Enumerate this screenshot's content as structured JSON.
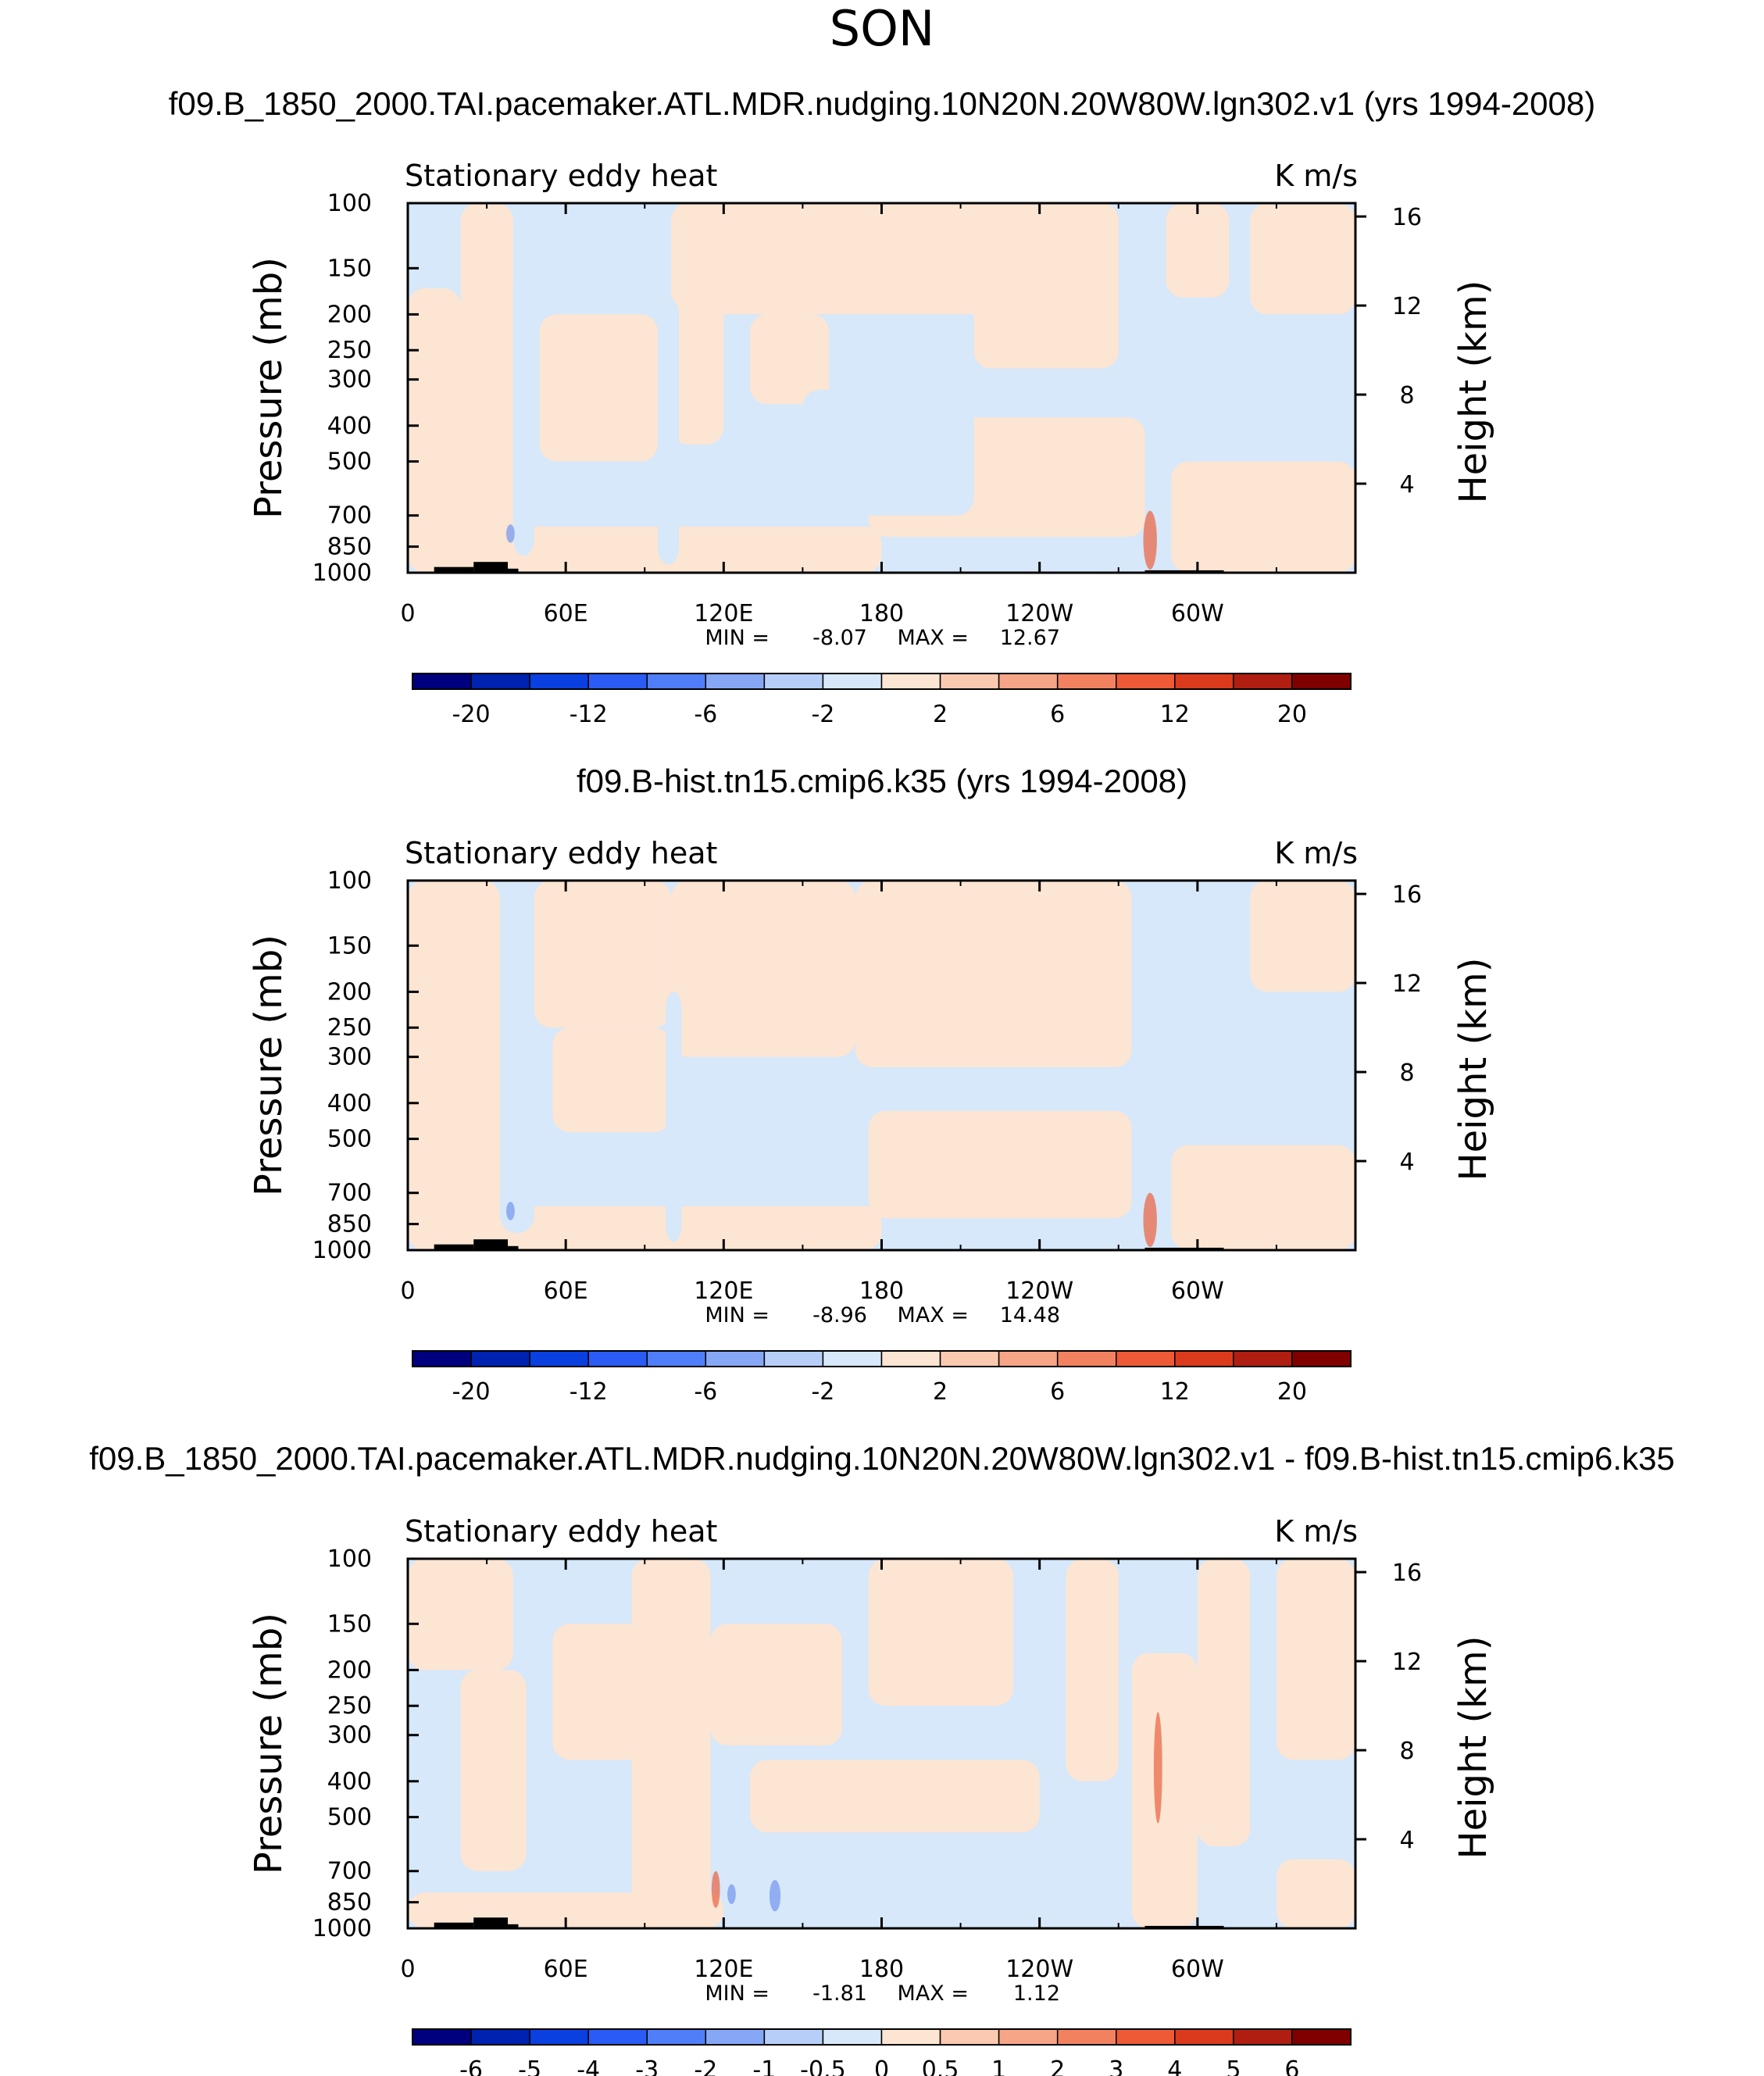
{
  "figure": {
    "season_title": "SON",
    "colors": {
      "light_blue": "#d6e8fa",
      "light_peach": "#fde5d3",
      "frame": "#000000",
      "topography": "#000000",
      "red_patch": "#e96a4a",
      "blue_patch": "#7f9ff0"
    }
  },
  "chart_data": [
    {
      "type": "heatmap",
      "title": "f09.B_1850_2000.TAI.pacemaker.ATL.MDR.nudging.10N20N.20W80W.lgn302.v1 (yrs 1994-2008)",
      "left_label": "Stationary eddy heat",
      "right_label": "K m/s",
      "ylabel": "Pressure (mb)",
      "ylabel_right": "Height (km)",
      "x_ticks": [
        "0",
        "60E",
        "120E",
        "180",
        "120W",
        "60W"
      ],
      "x_tick_lon": [
        0,
        60,
        120,
        180,
        240,
        300
      ],
      "xlim": [
        0,
        360
      ],
      "y_ticks": [
        "100",
        "150",
        "200",
        "250",
        "300",
        "400",
        "500",
        "700",
        "850",
        "1000"
      ],
      "y_tick_values": [
        100,
        150,
        200,
        250,
        300,
        400,
        500,
        700,
        850,
        1000
      ],
      "ylim": [
        1000,
        100
      ],
      "height_ticks": [
        "16",
        "12",
        "8",
        "4"
      ],
      "height_values": [
        16,
        12,
        8,
        4
      ],
      "min_label": "MIN =",
      "min_value": "-8.07",
      "max_label": "MAX =",
      "max_value": "12.67",
      "colorbar": {
        "colors": [
          "#00007f",
          "#0022b0",
          "#0a3fe0",
          "#2a5cf5",
          "#4f7ef8",
          "#86a7f6",
          "#b7cff8",
          "#d6e8fa",
          "#fde5d3",
          "#fac9b0",
          "#f6a586",
          "#f2825f",
          "#ee5a36",
          "#dc3a1c",
          "#b01e12",
          "#800000"
        ],
        "labels": [
          "-20",
          "-12",
          "-6",
          "-2",
          "2",
          "6",
          "12",
          "20"
        ],
        "label_boundaries": [
          1,
          3,
          5,
          7,
          9,
          11,
          13,
          15
        ]
      },
      "regions": [
        {
          "sign": "+",
          "lon": [
            0,
            20
          ],
          "p": [
            170,
            1000
          ]
        },
        {
          "sign": "+",
          "lon": [
            20,
            40
          ],
          "p": [
            100,
            1000
          ]
        },
        {
          "sign": "+",
          "lon": [
            50,
            95
          ],
          "p": [
            200,
            500
          ]
        },
        {
          "sign": "+",
          "lon": [
            100,
            120
          ],
          "p": [
            100,
            450
          ]
        },
        {
          "sign": "+",
          "lon": [
            100,
            240
          ],
          "p": [
            100,
            200
          ]
        },
        {
          "sign": "+",
          "lon": [
            130,
            160
          ],
          "p": [
            200,
            350
          ]
        },
        {
          "sign": "+",
          "lon": [
            175,
            280
          ],
          "p": [
            380,
            800
          ]
        },
        {
          "sign": "+",
          "lon": [
            215,
            270
          ],
          "p": [
            100,
            280
          ]
        },
        {
          "sign": "+",
          "lon": [
            288,
            312
          ],
          "p": [
            100,
            180
          ]
        },
        {
          "sign": "+",
          "lon": [
            320,
            360
          ],
          "p": [
            100,
            200
          ]
        },
        {
          "sign": "+",
          "lon": [
            290,
            360
          ],
          "p": [
            500,
            1000
          ]
        },
        {
          "sign": "+",
          "lon": [
            0,
            180
          ],
          "p": [
            750,
            1000
          ]
        },
        {
          "sign": "-",
          "lon": [
            40,
            48
          ],
          "p": [
            150,
            900
          ]
        },
        {
          "sign": "-",
          "lon": [
            95,
            103
          ],
          "p": [
            180,
            950
          ]
        },
        {
          "sign": "-",
          "lon": [
            150,
            215
          ],
          "p": [
            320,
            700
          ]
        }
      ],
      "topography": [
        {
          "lon": [
            10,
            25
          ],
          "p": [
            965,
            1000
          ]
        },
        {
          "lon": [
            25,
            38
          ],
          "p": [
            935,
            1000
          ]
        },
        {
          "lon": [
            38,
            42
          ],
          "p": [
            975,
            1000
          ]
        },
        {
          "lon": [
            280,
            310
          ],
          "p": [
            985,
            1000
          ]
        }
      ],
      "red_patches": [
        {
          "lon": [
            280,
            284
          ],
          "p": [
            680,
            980
          ]
        }
      ],
      "blue_patches": [
        {
          "lon": [
            38,
            40
          ],
          "p": [
            740,
            830
          ]
        }
      ]
    },
    {
      "type": "heatmap",
      "title": "f09.B-hist.tn15.cmip6.k35 (yrs 1994-2008)",
      "left_label": "Stationary eddy heat",
      "right_label": "K m/s",
      "ylabel": "Pressure (mb)",
      "ylabel_right": "Height (km)",
      "x_ticks": [
        "0",
        "60E",
        "120E",
        "180",
        "120W",
        "60W"
      ],
      "x_tick_lon": [
        0,
        60,
        120,
        180,
        240,
        300
      ],
      "xlim": [
        0,
        360
      ],
      "y_ticks": [
        "100",
        "150",
        "200",
        "250",
        "300",
        "400",
        "500",
        "700",
        "850",
        "1000"
      ],
      "y_tick_values": [
        100,
        150,
        200,
        250,
        300,
        400,
        500,
        700,
        850,
        1000
      ],
      "ylim": [
        1000,
        100
      ],
      "height_ticks": [
        "16",
        "12",
        "8",
        "4"
      ],
      "height_values": [
        16,
        12,
        8,
        4
      ],
      "min_label": "MIN =",
      "min_value": "-8.96",
      "max_label": "MAX =",
      "max_value": "14.48",
      "colorbar": {
        "colors": [
          "#00007f",
          "#0022b0",
          "#0a3fe0",
          "#2a5cf5",
          "#4f7ef8",
          "#86a7f6",
          "#b7cff8",
          "#d6e8fa",
          "#fde5d3",
          "#fac9b0",
          "#f6a586",
          "#f2825f",
          "#ee5a36",
          "#dc3a1c",
          "#b01e12",
          "#800000"
        ],
        "labels": [
          "-20",
          "-12",
          "-6",
          "-2",
          "2",
          "6",
          "12",
          "20"
        ],
        "label_boundaries": [
          1,
          3,
          5,
          7,
          9,
          11,
          13,
          15
        ]
      },
      "regions": [
        {
          "sign": "+",
          "lon": [
            0,
            35
          ],
          "p": [
            100,
            1000
          ]
        },
        {
          "sign": "+",
          "lon": [
            48,
            100
          ],
          "p": [
            100,
            250
          ]
        },
        {
          "sign": "+",
          "lon": [
            55,
            100
          ],
          "p": [
            250,
            480
          ]
        },
        {
          "sign": "+",
          "lon": [
            100,
            170
          ],
          "p": [
            100,
            300
          ]
        },
        {
          "sign": "+",
          "lon": [
            170,
            275
          ],
          "p": [
            100,
            320
          ]
        },
        {
          "sign": "+",
          "lon": [
            175,
            275
          ],
          "p": [
            420,
            820
          ]
        },
        {
          "sign": "+",
          "lon": [
            320,
            360
          ],
          "p": [
            100,
            200
          ]
        },
        {
          "sign": "+",
          "lon": [
            290,
            360
          ],
          "p": [
            520,
            1000
          ]
        },
        {
          "sign": "+",
          "lon": [
            0,
            180
          ],
          "p": [
            760,
            1000
          ]
        },
        {
          "sign": "-",
          "lon": [
            35,
            48
          ],
          "p": [
            120,
            900
          ]
        },
        {
          "sign": "-",
          "lon": [
            98,
            104
          ],
          "p": [
            200,
            950
          ]
        }
      ],
      "topography": [
        {
          "lon": [
            10,
            25
          ],
          "p": [
            965,
            1000
          ]
        },
        {
          "lon": [
            25,
            38
          ],
          "p": [
            935,
            1000
          ]
        },
        {
          "lon": [
            38,
            42
          ],
          "p": [
            975,
            1000
          ]
        },
        {
          "lon": [
            280,
            310
          ],
          "p": [
            985,
            1000
          ]
        }
      ],
      "red_patches": [
        {
          "lon": [
            280,
            284
          ],
          "p": [
            700,
            980
          ]
        }
      ],
      "blue_patches": [
        {
          "lon": [
            38,
            40
          ],
          "p": [
            740,
            830
          ]
        }
      ]
    },
    {
      "type": "heatmap",
      "title": "f09.B_1850_2000.TAI.pacemaker.ATL.MDR.nudging.10N20N.20W80W.lgn302.v1 - f09.B-hist.tn15.cmip6.k35",
      "left_label": "Stationary eddy heat",
      "right_label": "K m/s",
      "ylabel": "Pressure (mb)",
      "ylabel_right": "Height (km)",
      "x_ticks": [
        "0",
        "60E",
        "120E",
        "180",
        "120W",
        "60W"
      ],
      "x_tick_lon": [
        0,
        60,
        120,
        180,
        240,
        300
      ],
      "xlim": [
        0,
        360
      ],
      "y_ticks": [
        "100",
        "150",
        "200",
        "250",
        "300",
        "400",
        "500",
        "700",
        "850",
        "1000"
      ],
      "y_tick_values": [
        100,
        150,
        200,
        250,
        300,
        400,
        500,
        700,
        850,
        1000
      ],
      "ylim": [
        1000,
        100
      ],
      "height_ticks": [
        "16",
        "12",
        "8",
        "4"
      ],
      "height_values": [
        16,
        12,
        8,
        4
      ],
      "min_label": "MIN =",
      "min_value": "-1.81",
      "max_label": "MAX =",
      "max_value": "1.12",
      "colorbar": {
        "colors": [
          "#00007f",
          "#0022b0",
          "#0a3fe0",
          "#2a5cf5",
          "#4f7ef8",
          "#86a7f6",
          "#b7cff8",
          "#d6e8fa",
          "#fde5d3",
          "#fac9b0",
          "#f6a586",
          "#f2825f",
          "#ee5a36",
          "#dc3a1c",
          "#b01e12",
          "#800000"
        ],
        "labels": [
          "-6",
          "-5",
          "-4",
          "-3",
          "-2",
          "-1",
          "-0.5",
          "0",
          "0.5",
          "1",
          "2",
          "3",
          "4",
          "5",
          "6"
        ],
        "label_boundaries": [
          1,
          2,
          3,
          4,
          5,
          6,
          7,
          8,
          9,
          10,
          11,
          12,
          13,
          14,
          15
        ]
      },
      "regions": [
        {
          "sign": "+",
          "lon": [
            0,
            40
          ],
          "p": [
            100,
            200
          ]
        },
        {
          "sign": "+",
          "lon": [
            20,
            45
          ],
          "p": [
            200,
            700
          ]
        },
        {
          "sign": "+",
          "lon": [
            55,
            90
          ],
          "p": [
            150,
            350
          ]
        },
        {
          "sign": "+",
          "lon": [
            85,
            115
          ],
          "p": [
            100,
            900
          ]
        },
        {
          "sign": "+",
          "lon": [
            115,
            165
          ],
          "p": [
            150,
            320
          ]
        },
        {
          "sign": "+",
          "lon": [
            130,
            240
          ],
          "p": [
            350,
            550
          ]
        },
        {
          "sign": "+",
          "lon": [
            175,
            230
          ],
          "p": [
            100,
            250
          ]
        },
        {
          "sign": "+",
          "lon": [
            250,
            270
          ],
          "p": [
            100,
            400
          ]
        },
        {
          "sign": "+",
          "lon": [
            275,
            300
          ],
          "p": [
            180,
            1000
          ]
        },
        {
          "sign": "+",
          "lon": [
            300,
            320
          ],
          "p": [
            100,
            600
          ]
        },
        {
          "sign": "+",
          "lon": [
            330,
            360
          ],
          "p": [
            100,
            350
          ]
        },
        {
          "sign": "+",
          "lon": [
            330,
            360
          ],
          "p": [
            650,
            1000
          ]
        },
        {
          "sign": "+",
          "lon": [
            0,
            120
          ],
          "p": [
            800,
            1000
          ]
        }
      ],
      "topography": [
        {
          "lon": [
            10,
            25
          ],
          "p": [
            965,
            1000
          ]
        },
        {
          "lon": [
            25,
            38
          ],
          "p": [
            935,
            1000
          ]
        },
        {
          "lon": [
            38,
            42
          ],
          "p": [
            975,
            1000
          ]
        },
        {
          "lon": [
            280,
            310
          ],
          "p": [
            985,
            1000
          ]
        }
      ],
      "red_patches": [
        {
          "lon": [
            284,
            286
          ],
          "p": [
            260,
            520
          ]
        },
        {
          "lon": [
            116,
            118
          ],
          "p": [
            700,
            880
          ]
        }
      ],
      "blue_patches": [
        {
          "lon": [
            122,
            124
          ],
          "p": [
            760,
            860
          ]
        },
        {
          "lon": [
            138,
            141
          ],
          "p": [
            740,
            900
          ]
        }
      ]
    }
  ]
}
